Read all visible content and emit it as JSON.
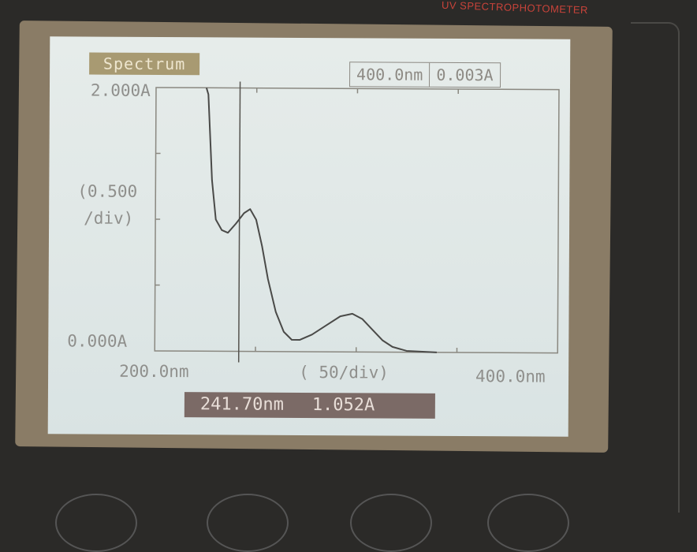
{
  "device": {
    "brand_text": "UV SPECTROPHOTOMETER"
  },
  "screen": {
    "title": "Spectrum",
    "readout": {
      "wavelength": "400.0nm",
      "absorbance": "0.003A"
    },
    "cursor": {
      "wavelength": "241.70nm",
      "absorbance": "1.052A"
    }
  },
  "chart_data": {
    "type": "line",
    "title": "",
    "ylabel": "(0.500 /div)",
    "ylabel_lines": [
      "(0.500",
      "/div)"
    ],
    "xlabel": "( 50/div)",
    "y_max_label": "2.000A",
    "y_min_label": "0.000A",
    "x_min_label": "200.0nm",
    "x_max_label": "400.0nm",
    "xlim": [
      200,
      400
    ],
    "ylim": [
      0,
      2
    ],
    "x_unit": "nm",
    "y_unit": "A",
    "grid": false,
    "line_color": "#4a4a48",
    "cursor_x": 241.7,
    "cursor_y": 1.052,
    "series": [
      {
        "x": [
          225,
          226,
          228,
          230,
          233,
          236,
          240,
          244,
          247,
          250,
          253,
          256,
          260,
          264,
          268,
          272,
          278,
          285,
          292,
          298,
          303,
          308,
          313,
          318,
          325,
          340
        ],
        "y": [
          2.0,
          1.95,
          1.3,
          1.0,
          0.92,
          0.9,
          0.97,
          1.05,
          1.08,
          1.0,
          0.8,
          0.55,
          0.3,
          0.15,
          0.09,
          0.09,
          0.13,
          0.2,
          0.27,
          0.29,
          0.25,
          0.17,
          0.09,
          0.04,
          0.01,
          0.0
        ]
      }
    ]
  }
}
